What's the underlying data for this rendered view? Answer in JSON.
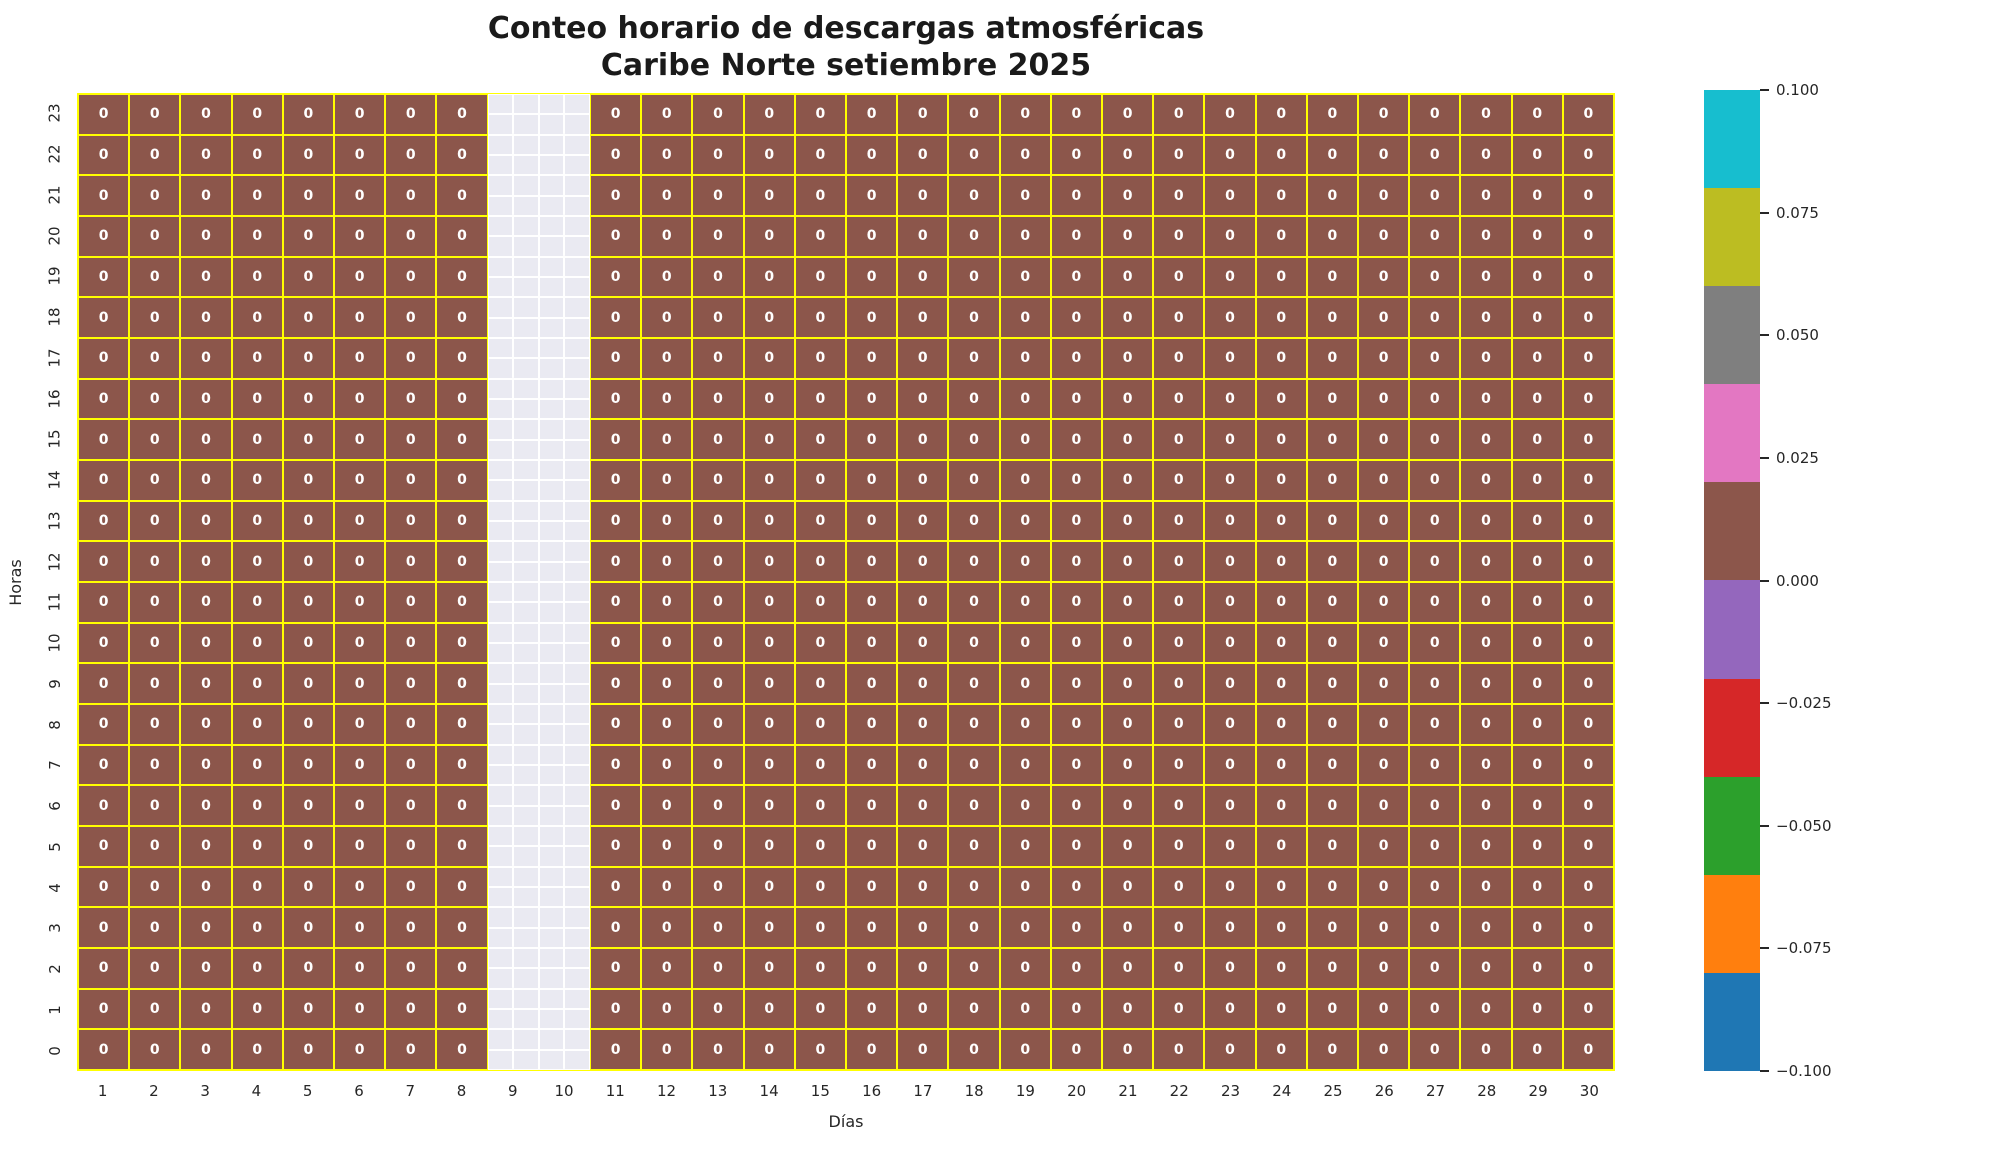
{
  "title": {
    "line1": "Conteo horario de descargas atmosféricas",
    "line2": "Caribe Norte setiembre 2025"
  },
  "axes": {
    "xlabel": "Días",
    "ylabel": "Horas"
  },
  "chart_data": {
    "type": "heatmap",
    "title": "Conteo horario de descargas atmosféricas\nCaribe Norte setiembre 2025",
    "xlabel": "Días",
    "ylabel": "Horas",
    "x_days": [
      1,
      2,
      3,
      4,
      5,
      6,
      7,
      8,
      9,
      10,
      11,
      12,
      13,
      14,
      15,
      16,
      17,
      18,
      19,
      20,
      21,
      22,
      23,
      24,
      25,
      26,
      27,
      28,
      29,
      30
    ],
    "y_hours_top_to_bottom": [
      23,
      22,
      21,
      20,
      19,
      18,
      17,
      16,
      15,
      14,
      13,
      12,
      11,
      10,
      9,
      8,
      7,
      6,
      5,
      4,
      3,
      2,
      1,
      0
    ],
    "cell_value_constant": 0,
    "missing_day_columns": [
      9,
      10
    ],
    "annotation_note": "Every drawn cell is annotated with the value 0; day columns 9 and 10 have no data (empty background cells)",
    "colors": {
      "cell": "#8c564b",
      "grid_lines": "#ffff00",
      "missing_cell_background": "#eaeaf2",
      "missing_cell_grid": "#ffffff",
      "cell_text": "#ffffff",
      "figure_background": "#ffffff"
    },
    "colorbar": {
      "vmin": -0.1,
      "vmax": 0.1,
      "colors_top_to_bottom": [
        "#17becf",
        "#bcbd22",
        "#7f7f7f",
        "#e377c2",
        "#8c564b",
        "#9467bd",
        "#d62728",
        "#2ca02c",
        "#ff7f0e",
        "#1f77b4"
      ],
      "tick_labels": [
        "0.100",
        "0.075",
        "0.050",
        "0.025",
        "0.000",
        "−0.025",
        "−0.050",
        "−0.075",
        "−0.100"
      ],
      "tick_values": [
        0.1,
        0.075,
        0.05,
        0.025,
        0.0,
        -0.025,
        -0.05,
        -0.075,
        -0.1
      ]
    },
    "grid_shape": {
      "rows": 24,
      "cols": 30
    },
    "legend_position": "right-colorbar"
  }
}
